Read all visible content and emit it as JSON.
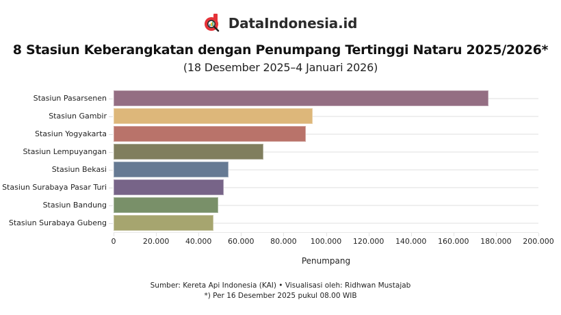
{
  "brand": {
    "name": "DataIndonesia.id",
    "logo_icon": "dataindonesia-logo-icon",
    "logo_color": "#E53238"
  },
  "header": {
    "title": "8 Stasiun Keberangkatan dengan Penumpang Tertinggi Nataru 2025/2026*",
    "subtitle": "(18 Desember 2025–4 Januari 2026)"
  },
  "axis": {
    "x_title": "Penumpang",
    "x_ticks": [
      "0",
      "20.000",
      "40.000",
      "60.000",
      "80.000",
      "100.000",
      "120.000",
      "140.000",
      "160.000",
      "180.000",
      "200.000"
    ]
  },
  "footer": {
    "source": "Sumber: Kereta Api Indonesia (KAI) • Visualisasi oleh: Ridhwan Mustajab",
    "note": "*) Per 16 Desember 2025 pukul 08.00 WIB"
  },
  "chart_data": {
    "type": "bar",
    "orientation": "horizontal",
    "title": "8 Stasiun Keberangkatan dengan Penumpang Tertinggi Nataru 2025/2026*",
    "subtitle": "(18 Desember 2025–4 Januari 2026)",
    "xlabel": "Penumpang",
    "ylabel": "",
    "xlim": [
      0,
      200000
    ],
    "grid": true,
    "legend": "none",
    "categories": [
      "Stasiun Pasarsenen",
      "Stasiun Gambir",
      "Stasiun Yogyakarta",
      "Stasiun Lempuyangan",
      "Stasiun Bekasi",
      "Stasiun Surabaya Pasar Turi",
      "Stasiun Bandung",
      "Stasiun Surabaya Gubeng"
    ],
    "values": [
      176500,
      93600,
      90400,
      70600,
      54100,
      52000,
      49400,
      47100
    ],
    "colors": [
      "#946E83",
      "#DDB77A",
      "#B9736A",
      "#807E5E",
      "#667A93",
      "#776488",
      "#799069",
      "#A6A56F"
    ]
  }
}
